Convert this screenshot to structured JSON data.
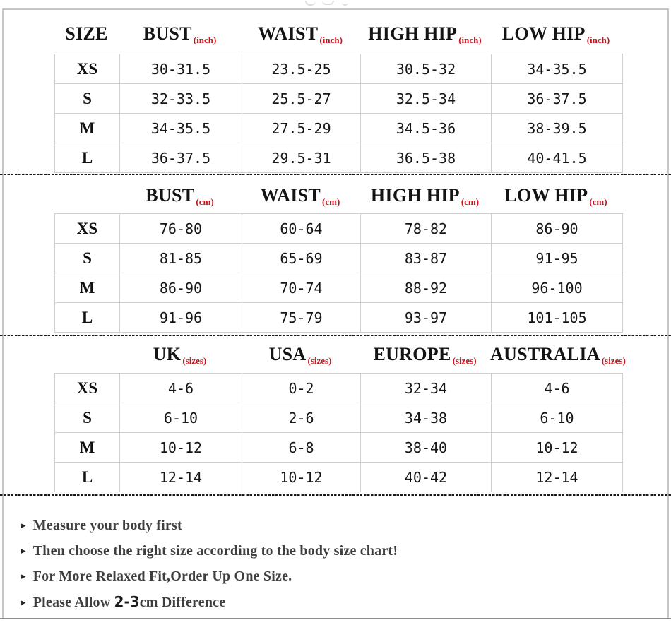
{
  "colors": {
    "accent_red": "#c9161d",
    "text_primary": "#141414",
    "grid_line": "#cfcfcf",
    "frame_border": "#c6c6c6",
    "divider": "#191919",
    "bottom_line": "#8f8f8f",
    "note_text": "#3e3e3e"
  },
  "size_chart": {
    "size_column_header": "SIZE",
    "sections": [
      {
        "unit": "(inch)",
        "columns": [
          "BUST",
          "WAIST",
          "HIGH HIP",
          "LOW HIP"
        ],
        "rows": [
          {
            "size": "XS",
            "values": [
              "30-31.5",
              "23.5-25",
              "30.5-32",
              "34-35.5"
            ]
          },
          {
            "size": "S",
            "values": [
              "32-33.5",
              "25.5-27",
              "32.5-34",
              "36-37.5"
            ]
          },
          {
            "size": "M",
            "values": [
              "34-35.5",
              "27.5-29",
              "34.5-36",
              "38-39.5"
            ]
          },
          {
            "size": "L",
            "values": [
              "36-37.5",
              "29.5-31",
              "36.5-38",
              "40-41.5"
            ]
          }
        ]
      },
      {
        "unit": "(cm)",
        "columns": [
          "BUST",
          "WAIST",
          "HIGH HIP",
          "LOW HIP"
        ],
        "rows": [
          {
            "size": "XS",
            "values": [
              "76-80",
              "60-64",
              "78-82",
              "86-90"
            ]
          },
          {
            "size": "S",
            "values": [
              "81-85",
              "65-69",
              "83-87",
              "91-95"
            ]
          },
          {
            "size": "M",
            "values": [
              "86-90",
              "70-74",
              "88-92",
              "96-100"
            ]
          },
          {
            "size": "L",
            "values": [
              "91-96",
              "75-79",
              "93-97",
              "101-105"
            ]
          }
        ]
      },
      {
        "unit": "(sizes)",
        "columns": [
          "UK",
          "USA",
          "EUROPE",
          "AUSTRALIA"
        ],
        "rows": [
          {
            "size": "XS",
            "values": [
              "4-6",
              "0-2",
              "32-34",
              "4-6"
            ]
          },
          {
            "size": "S",
            "values": [
              "6-10",
              "2-6",
              "34-38",
              "6-10"
            ]
          },
          {
            "size": "M",
            "values": [
              "10-12",
              "6-8",
              "38-40",
              "10-12"
            ]
          },
          {
            "size": "L",
            "values": [
              "12-14",
              "10-12",
              "40-42",
              "12-14"
            ]
          }
        ]
      }
    ]
  },
  "notes": {
    "bullet": "▸",
    "items": [
      {
        "text": "Measure your body first"
      },
      {
        "text": "Then choose the right size according to the body size chart!"
      },
      {
        "text": "For More Relaxed Fit,Order Up One Size."
      },
      {
        "prefix": "Please Allow ",
        "highlight": "2-3",
        "suffix": "cm Difference"
      }
    ]
  }
}
